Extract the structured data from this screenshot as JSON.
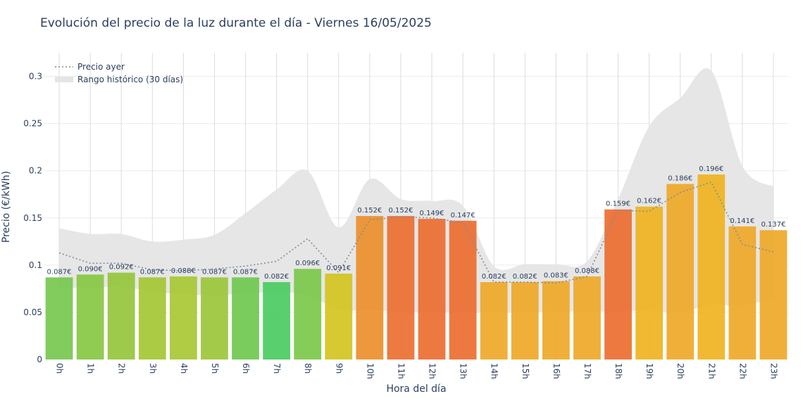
{
  "chart_data": {
    "type": "bar",
    "title": "Evolución del precio de la luz durante el día - Viernes 16/05/2025",
    "xlabel": "Hora del día",
    "ylabel": "Precio (€/kWh)",
    "ylim": [
      0,
      0.325
    ],
    "yticks": [
      0,
      0.05,
      0.1,
      0.15,
      0.2,
      0.25,
      0.3
    ],
    "ytick_labels": [
      "0",
      "0.05",
      "0.1",
      "0.15",
      "0.2",
      "0.25",
      "0.3"
    ],
    "grid": true,
    "legend_position": "top-left",
    "categories": [
      "0h",
      "1h",
      "2h",
      "3h",
      "4h",
      "5h",
      "6h",
      "7h",
      "8h",
      "9h",
      "10h",
      "11h",
      "12h",
      "13h",
      "14h",
      "15h",
      "16h",
      "17h",
      "18h",
      "19h",
      "20h",
      "21h",
      "22h",
      "23h"
    ],
    "series": [
      {
        "type": "bar",
        "values": [
          0.087,
          0.09,
          0.092,
          0.087,
          0.088,
          0.087,
          0.087,
          0.082,
          0.096,
          0.091,
          0.152,
          0.152,
          0.149,
          0.147,
          0.082,
          0.082,
          0.083,
          0.088,
          0.159,
          0.162,
          0.186,
          0.196,
          0.141,
          0.137
        ],
        "labels": [
          "0.087€",
          "0.090€",
          "0.092€",
          "0.087€",
          "0.088€",
          "0.087€",
          "0.087€",
          "0.082€",
          "0.096€",
          "0.091€",
          "0.152€",
          "0.152€",
          "0.149€",
          "0.147€",
          "0.082€",
          "0.082€",
          "0.083€",
          "0.088€",
          "0.159€",
          "0.162€",
          "0.186€",
          "0.196€",
          "0.141€",
          "0.137€"
        ],
        "colors": [
          "#76c84e",
          "#87c743",
          "#95c63c",
          "#a4c734",
          "#a8c834",
          "#9bc73a",
          "#6fc94f",
          "#4bcb61",
          "#7cc84a",
          "#d2c41f",
          "#eb8f2b",
          "#ec6f31",
          "#ec6e31",
          "#ec6e31",
          "#efa828",
          "#efa828",
          "#efa828",
          "#efa828",
          "#ec6e31",
          "#efb31f",
          "#efa828",
          "#efb31f",
          "#efa828",
          "#efa828"
        ]
      },
      {
        "type": "line",
        "name": "Precio ayer",
        "color": "#7f8c99",
        "values": [
          0.113,
          0.102,
          0.102,
          0.095,
          0.094,
          0.096,
          0.099,
          0.104,
          0.128,
          0.092,
          0.148,
          0.151,
          0.15,
          0.145,
          0.082,
          0.082,
          0.081,
          0.088,
          0.158,
          0.157,
          0.177,
          0.188,
          0.122,
          0.114
        ]
      },
      {
        "type": "area",
        "name": "Rango histórico (30 días)",
        "color": "#e5e5e5",
        "upper": [
          0.139,
          0.133,
          0.133,
          0.125,
          0.127,
          0.132,
          0.155,
          0.18,
          0.2,
          0.14,
          0.191,
          0.17,
          0.168,
          0.163,
          0.099,
          0.101,
          0.101,
          0.104,
          0.17,
          0.247,
          0.277,
          0.306,
          0.205,
          0.183
        ],
        "lower": [
          0.076,
          0.076,
          0.077,
          0.072,
          0.069,
          0.068,
          0.07,
          0.071,
          0.068,
          0.053,
          0.052,
          0.051,
          0.05,
          0.05,
          0.049,
          0.05,
          0.051,
          0.051,
          0.051,
          0.052,
          0.05,
          0.058,
          0.057,
          0.065
        ]
      }
    ]
  }
}
